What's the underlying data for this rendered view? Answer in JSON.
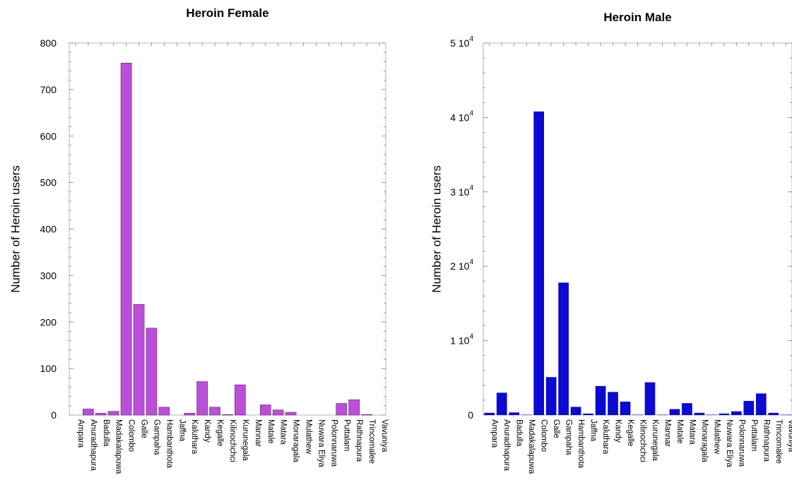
{
  "chart_data": [
    {
      "type": "bar",
      "title": "Heroin Female",
      "ylabel": "Number of Heroin users",
      "xlabel": "",
      "ylim": [
        0,
        800
      ],
      "yticks": [
        0,
        100,
        200,
        300,
        400,
        500,
        600,
        700,
        800
      ],
      "ytick_labels": [
        "0",
        "100",
        "200",
        "300",
        "400",
        "500",
        "600",
        "700",
        "800"
      ],
      "grid": false,
      "bar_color": "#bb4fd9",
      "categories": [
        "Ampara",
        "Anuradhapura",
        "Badulla",
        "Madakalapuwa",
        "Colombo",
        "Galle",
        "Gampaha",
        "Hambanthota",
        "Jaffna",
        "Kaluthara",
        "Kandy",
        "Kegalle",
        "Kilinochchci",
        "Kurunegala",
        "Mannar",
        "Matale",
        "Matara",
        "Monaragala",
        "Mulathew",
        "Nuwara Eliya",
        "Polonnaruwa",
        "Puttalam",
        "Rathnapura",
        "Trincomalee",
        "Vavuniya"
      ],
      "values": [
        0,
        13,
        4,
        8,
        757,
        238,
        187,
        17,
        0,
        4,
        72,
        17,
        1,
        65,
        0,
        22,
        11,
        6,
        0,
        0,
        0,
        25,
        33,
        1,
        0
      ]
    },
    {
      "type": "bar",
      "title": "Heroin Male",
      "ylabel": "Number of Heroin users",
      "xlabel": "",
      "ylim": [
        0,
        50000
      ],
      "yticks": [
        0,
        10000,
        20000,
        30000,
        40000,
        50000
      ],
      "ytick_labels": [
        {
          "base": "0",
          "exp": ""
        },
        {
          "base": "1 10",
          "exp": "4"
        },
        {
          "base": "2 10",
          "exp": "4"
        },
        {
          "base": "3 10",
          "exp": "4"
        },
        {
          "base": "4 10",
          "exp": "4"
        },
        {
          "base": "5 10",
          "exp": "4"
        }
      ],
      "grid": false,
      "bar_color": "#0a0ad2",
      "categories": [
        "Ampara",
        "Anuradhapura",
        "Badulla",
        "Madakalapuwa",
        "Colombo",
        "Galle",
        "Gampaha",
        "Hambanthota",
        "Jaffna",
        "Kaluthara",
        "Kandy",
        "Kegalle",
        "Kilinochchci",
        "Kurunegala",
        "Mannar",
        "Matale",
        "Matara",
        "Monaragala",
        "Mulathew",
        "Nuwara Eliya",
        "Polonnaruwa",
        "Puttalam",
        "Rathnapura",
        "Trincomalee",
        "Vavuniya"
      ],
      "values": [
        300,
        3000,
        350,
        50,
        40800,
        5100,
        17800,
        1100,
        200,
        3900,
        3100,
        1800,
        50,
        4400,
        50,
        800,
        1600,
        300,
        50,
        200,
        500,
        1900,
        2900,
        300,
        50
      ]
    }
  ]
}
